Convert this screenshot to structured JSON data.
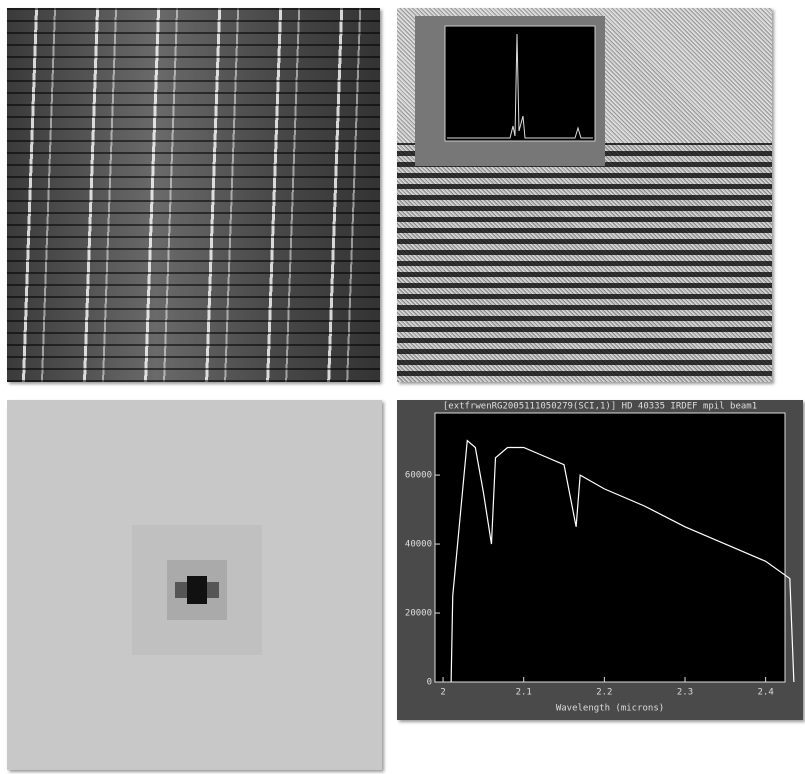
{
  "chart_data": {
    "type": "line",
    "title": "[extfrwenRG2005111050279(SCI,1)] HD 40335 IRDEF mpil beam1",
    "x_label": "Wavelength (microns)",
    "x": [
      2.01,
      2.012,
      2.02,
      2.03,
      2.04,
      2.05,
      2.06,
      2.065,
      2.08,
      2.1,
      2.12,
      2.15,
      2.165,
      2.17,
      2.2,
      2.25,
      2.3,
      2.35,
      2.4,
      2.43,
      2.435
    ],
    "values": [
      0,
      25000,
      45000,
      70000,
      68000,
      55000,
      40000,
      65000,
      68000,
      68000,
      66000,
      63000,
      45000,
      60000,
      56000,
      51000,
      45000,
      40000,
      35000,
      30000,
      0
    ],
    "color": "#ffffff",
    "xlim": [
      1.99,
      2.424
    ],
    "ylim": [
      0,
      78000
    ],
    "xticks": [
      2,
      2.1,
      2.2,
      2.3,
      2.4
    ],
    "yticks": [
      0,
      20000,
      40000,
      60000
    ]
  }
}
